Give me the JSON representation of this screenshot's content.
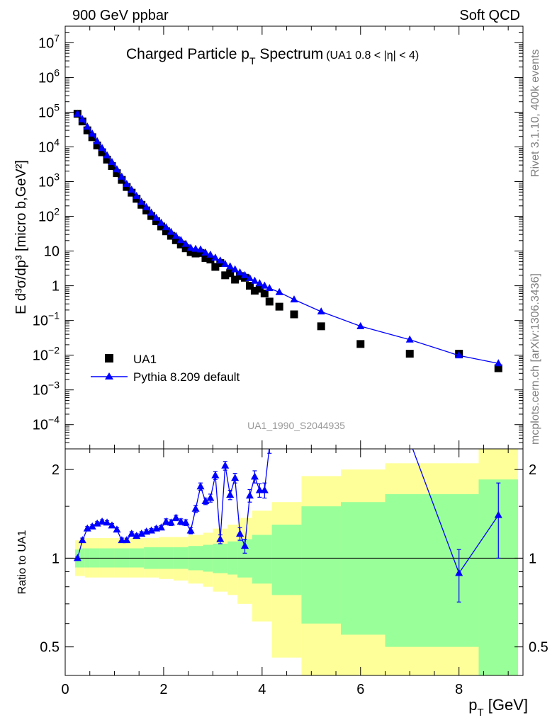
{
  "header": {
    "left": "900 GeV ppbar",
    "right": "Soft QCD"
  },
  "side": {
    "rivet": "Rivet 3.1.10,  400k events",
    "mcplots": "mcplots.cern.ch [arXiv:1306.3436]"
  },
  "chart_data": [
    {
      "type": "scatter",
      "panel": "main",
      "title_main": "Charged Particle p",
      "title_sub": "T",
      "title_suffix": " Spectrum",
      "title_extra": "(UA1 0.8 < |η| < 4)",
      "ylabel": "E d³σ/dp³ [micro b,GeV²]",
      "watermark": "UA1_1990_S2044935",
      "yscale": "log",
      "ylim": [
        2e-05,
        30000000
      ],
      "xlim": [
        0,
        9.3
      ],
      "legend": {
        "placement": "lower-left",
        "entries": [
          "UA1",
          "Pythia 8.209 default"
        ]
      },
      "y_tick_labels": [
        {
          "v": 10000000,
          "base": "10",
          "exp": "7"
        },
        {
          "v": 1000000,
          "base": "10",
          "exp": "6"
        },
        {
          "v": 100000,
          "base": "10",
          "exp": "5"
        },
        {
          "v": 10000,
          "base": "10",
          "exp": "4"
        },
        {
          "v": 1000,
          "base": "10",
          "exp": "3"
        },
        {
          "v": 100,
          "base": "10",
          "exp": "2"
        },
        {
          "v": 10,
          "base": "10",
          "exp": ""
        },
        {
          "v": 1,
          "base": "1",
          "exp": ""
        },
        {
          "v": 0.1,
          "base": "10",
          "exp": "−1"
        },
        {
          "v": 0.01,
          "base": "10",
          "exp": "−2"
        },
        {
          "v": 0.001,
          "base": "10",
          "exp": "−3"
        },
        {
          "v": 0.0001,
          "base": "10",
          "exp": "−4"
        }
      ],
      "series": [
        {
          "name": "UA1",
          "color": "#000000",
          "marker": "square",
          "points": [
            [
              0.25,
              90000
            ],
            [
              0.35,
              54000
            ],
            [
              0.45,
              30000
            ],
            [
              0.55,
              19000
            ],
            [
              0.65,
              11000
            ],
            [
              0.75,
              7000
            ],
            [
              0.85,
              4300
            ],
            [
              0.95,
              2800
            ],
            [
              1.05,
              1750
            ],
            [
              1.15,
              1120
            ],
            [
              1.25,
              700
            ],
            [
              1.35,
              480
            ],
            [
              1.45,
              320
            ],
            [
              1.55,
              215
            ],
            [
              1.65,
              148
            ],
            [
              1.75,
              102
            ],
            [
              1.85,
              72
            ],
            [
              1.95,
              51
            ],
            [
              2.05,
              37
            ],
            [
              2.15,
              27.5
            ],
            [
              2.25,
              20.5
            ],
            [
              2.35,
              15.5
            ],
            [
              2.45,
              12
            ],
            [
              2.55,
              9.3
            ],
            [
              2.65,
              8.5
            ],
            [
              2.75,
              8.8
            ],
            [
              2.85,
              6.3
            ],
            [
              2.95,
              5.7
            ],
            [
              3.05,
              3.5
            ],
            [
              3.15,
              4.5
            ],
            [
              3.25,
              2.0
            ],
            [
              3.35,
              2.3
            ],
            [
              3.45,
              1.5
            ],
            [
              3.55,
              1.9
            ],
            [
              3.65,
              1.7
            ],
            [
              3.75,
              1.0
            ],
            [
              3.85,
              0.72
            ],
            [
              3.95,
              0.82
            ],
            [
              4.05,
              0.6
            ],
            [
              4.15,
              0.35
            ],
            [
              4.35,
              0.25
            ],
            [
              4.65,
              0.15
            ],
            [
              5.2,
              0.068
            ],
            [
              6.0,
              0.021
            ],
            [
              7.0,
              0.011
            ],
            [
              8.0,
              0.011
            ],
            [
              8.8,
              0.0042
            ]
          ]
        },
        {
          "name": "Pythia 8.209 default",
          "color": "#0000ff",
          "marker": "triangle",
          "points": [
            [
              0.25,
              90000
            ],
            [
              0.35,
              62000
            ],
            [
              0.45,
              38000
            ],
            [
              0.55,
              24000
            ],
            [
              0.65,
              14500
            ],
            [
              0.75,
              9200
            ],
            [
              0.85,
              5700
            ],
            [
              0.95,
              3650
            ],
            [
              1.05,
              2250
            ],
            [
              1.15,
              1370
            ],
            [
              1.25,
              850
            ],
            [
              1.35,
              580
            ],
            [
              1.45,
              385
            ],
            [
              1.55,
              260
            ],
            [
              1.65,
              182
            ],
            [
              1.75,
              127
            ],
            [
              1.85,
              90
            ],
            [
              1.95,
              65
            ],
            [
              2.05,
              48
            ],
            [
              2.15,
              35.5
            ],
            [
              2.25,
              27
            ],
            [
              2.35,
              20.5
            ],
            [
              2.45,
              16
            ],
            [
              2.55,
              12.3
            ],
            [
              2.65,
              11.5
            ],
            [
              2.75,
              11.0
            ],
            [
              2.85,
              9.0
            ],
            [
              2.95,
              7.8
            ],
            [
              3.05,
              6.4
            ],
            [
              3.15,
              5.3
            ],
            [
              3.25,
              4.2
            ],
            [
              3.35,
              3.6
            ],
            [
              3.45,
              2.95
            ],
            [
              3.55,
              2.4
            ],
            [
              3.65,
              2.0
            ],
            [
              3.75,
              1.65
            ],
            [
              3.85,
              1.38
            ],
            [
              3.95,
              1.17
            ],
            [
              4.05,
              1.0
            ],
            [
              4.15,
              0.85
            ],
            [
              4.35,
              0.65
            ],
            [
              4.65,
              0.4
            ],
            [
              5.2,
              0.18
            ],
            [
              6.0,
              0.068
            ],
            [
              7.0,
              0.028
            ],
            [
              8.0,
              0.0098
            ],
            [
              8.8,
              0.0058
            ]
          ]
        }
      ]
    },
    {
      "type": "line",
      "panel": "ratio",
      "ylabel": "Ratio to UA1",
      "xlabel_main": "p",
      "xlabel_sub": "T",
      "xlabel_suffix": " [GeV]",
      "yscale": "log",
      "ylim": [
        0.4,
        2.35
      ],
      "xlim": [
        0,
        9.3
      ],
      "x_ticks": [
        "0",
        "2",
        "4",
        "6",
        "8"
      ],
      "y_ticks": [
        "0.5",
        "1",
        "2"
      ],
      "bands": [
        {
          "x0": 0.2,
          "x1": 0.3,
          "g": [
            0.93,
            1.07
          ],
          "y": [
            0.87,
            1.15
          ]
        },
        {
          "x0": 0.3,
          "x1": 0.4,
          "g": [
            0.93,
            1.08
          ],
          "y": [
            0.87,
            1.17
          ]
        },
        {
          "x0": 0.4,
          "x1": 0.5,
          "g": [
            0.93,
            1.08
          ],
          "y": [
            0.86,
            1.17
          ]
        },
        {
          "x0": 0.5,
          "x1": 0.7,
          "g": [
            0.93,
            1.08
          ],
          "y": [
            0.86,
            1.17
          ]
        },
        {
          "x0": 0.7,
          "x1": 1.0,
          "g": [
            0.93,
            1.08
          ],
          "y": [
            0.86,
            1.17
          ]
        },
        {
          "x0": 1.0,
          "x1": 1.3,
          "g": [
            0.93,
            1.08
          ],
          "y": [
            0.86,
            1.17
          ]
        },
        {
          "x0": 1.3,
          "x1": 1.6,
          "g": [
            0.93,
            1.08
          ],
          "y": [
            0.86,
            1.17
          ]
        },
        {
          "x0": 1.6,
          "x1": 1.9,
          "g": [
            0.92,
            1.09
          ],
          "y": [
            0.86,
            1.17
          ]
        },
        {
          "x0": 1.9,
          "x1": 2.2,
          "g": [
            0.92,
            1.09
          ],
          "y": [
            0.85,
            1.18
          ]
        },
        {
          "x0": 2.2,
          "x1": 2.5,
          "g": [
            0.92,
            1.09
          ],
          "y": [
            0.84,
            1.18
          ]
        },
        {
          "x0": 2.5,
          "x1": 2.8,
          "g": [
            0.91,
            1.1
          ],
          "y": [
            0.82,
            1.2
          ]
        },
        {
          "x0": 2.8,
          "x1": 3.0,
          "g": [
            0.9,
            1.11
          ],
          "y": [
            0.8,
            1.22
          ]
        },
        {
          "x0": 3.0,
          "x1": 3.3,
          "g": [
            0.89,
            1.12
          ],
          "y": [
            0.77,
            1.26
          ]
        },
        {
          "x0": 3.3,
          "x1": 3.5,
          "g": [
            0.88,
            1.14
          ],
          "y": [
            0.75,
            1.3
          ]
        },
        {
          "x0": 3.5,
          "x1": 3.8,
          "g": [
            0.86,
            1.16
          ],
          "y": [
            0.7,
            1.37
          ]
        },
        {
          "x0": 3.8,
          "x1": 4.2,
          "g": [
            0.82,
            1.2
          ],
          "y": [
            0.61,
            1.45
          ]
        },
        {
          "x0": 4.2,
          "x1": 4.8,
          "g": [
            0.75,
            1.3
          ],
          "y": [
            0.46,
            1.55
          ]
        },
        {
          "x0": 4.8,
          "x1": 5.6,
          "g": [
            0.6,
            1.5
          ],
          "y": [
            0.35,
            1.9
          ]
        },
        {
          "x0": 5.6,
          "x1": 6.5,
          "g": [
            0.55,
            1.55
          ],
          "y": [
            0.3,
            2.0
          ]
        },
        {
          "x0": 6.5,
          "x1": 8.4,
          "g": [
            0.5,
            1.65
          ],
          "y": [
            0.3,
            2.1
          ]
        },
        {
          "x0": 8.4,
          "x1": 9.2,
          "g": [
            0.4,
            1.85
          ],
          "y": [
            0.3,
            2.5
          ]
        }
      ],
      "ratio_points": [
        [
          0.25,
          1.0,
          0.01
        ],
        [
          0.35,
          1.15,
          0.02
        ],
        [
          0.45,
          1.26,
          0.02
        ],
        [
          0.55,
          1.28,
          0.02
        ],
        [
          0.65,
          1.31,
          0.02
        ],
        [
          0.75,
          1.33,
          0.02
        ],
        [
          0.85,
          1.32,
          0.02
        ],
        [
          0.95,
          1.29,
          0.02
        ],
        [
          1.05,
          1.25,
          0.02
        ],
        [
          1.15,
          1.15,
          0.02
        ],
        [
          1.25,
          1.15,
          0.02
        ],
        [
          1.35,
          1.21,
          0.02
        ],
        [
          1.45,
          1.19,
          0.02
        ],
        [
          1.55,
          1.21,
          0.02
        ],
        [
          1.65,
          1.23,
          0.02
        ],
        [
          1.75,
          1.24,
          0.02
        ],
        [
          1.85,
          1.26,
          0.02
        ],
        [
          1.95,
          1.27,
          0.02
        ],
        [
          2.05,
          1.33,
          0.03
        ],
        [
          2.15,
          1.32,
          0.03
        ],
        [
          2.25,
          1.37,
          0.03
        ],
        [
          2.35,
          1.33,
          0.03
        ],
        [
          2.45,
          1.32,
          0.03
        ],
        [
          2.55,
          1.24,
          0.03
        ],
        [
          2.65,
          1.47,
          0.04
        ],
        [
          2.75,
          1.75,
          0.05
        ],
        [
          2.85,
          1.56,
          0.04
        ],
        [
          2.95,
          1.6,
          0.05
        ],
        [
          3.05,
          1.91,
          0.06
        ],
        [
          3.15,
          1.16,
          0.04
        ],
        [
          3.25,
          2.06,
          0.07
        ],
        [
          3.35,
          1.64,
          0.06
        ],
        [
          3.45,
          1.87,
          0.07
        ],
        [
          3.55,
          1.21,
          0.06
        ],
        [
          3.65,
          1.1,
          0.06
        ],
        [
          3.75,
          1.63,
          0.08
        ],
        [
          3.85,
          1.89,
          0.09
        ],
        [
          3.95,
          1.7,
          0.09
        ],
        [
          4.05,
          1.7,
          0.1
        ],
        [
          4.15,
          2.4,
          0.13
        ],
        [
          7.0,
          2.5,
          0.15
        ],
        [
          8.0,
          0.89,
          0.18
        ],
        [
          8.8,
          1.4,
          0.4
        ]
      ]
    }
  ]
}
